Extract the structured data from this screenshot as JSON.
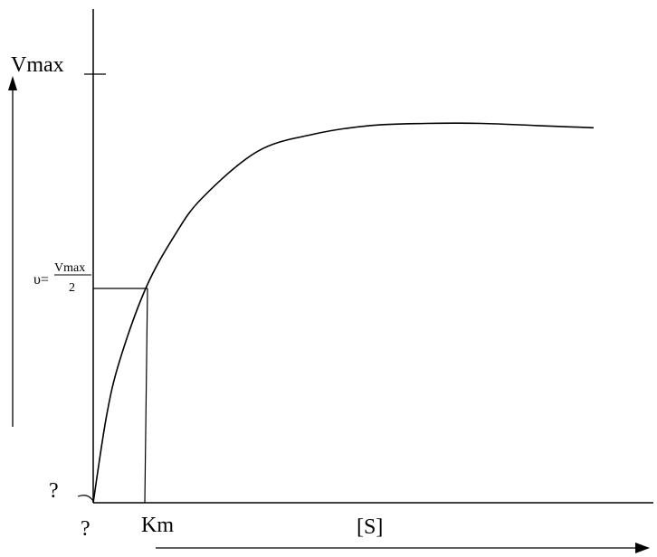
{
  "chart_data": {
    "type": "line",
    "title": "",
    "xlabel": "[S]",
    "ylabel": "",
    "axis_arrows": true,
    "grid": false,
    "y_markers": {
      "vmax": "Vmax",
      "half_vmax_prefix": "υ=",
      "half_vmax_numerator": "Vmax",
      "half_vmax_denominator": "2",
      "origin": "?"
    },
    "x_markers": {
      "origin": "?",
      "km": "Km"
    },
    "xlim": [
      0,
      9.5
    ],
    "ylim": [
      0,
      1.0
    ],
    "vmax": 1.0,
    "km": 1.0,
    "half_vmax": 0.5,
    "series": [
      {
        "x": [
          0,
          0.25,
          0.5,
          1.0,
          1.5,
          2.0,
          3.0,
          4.0,
          5.0,
          6.0,
          7.0,
          8.0,
          9.0
        ],
        "y": [
          0,
          0.2,
          0.33,
          0.5,
          0.62,
          0.71,
          0.82,
          0.86,
          0.88,
          0.885,
          0.885,
          0.88,
          0.875
        ]
      }
    ]
  }
}
